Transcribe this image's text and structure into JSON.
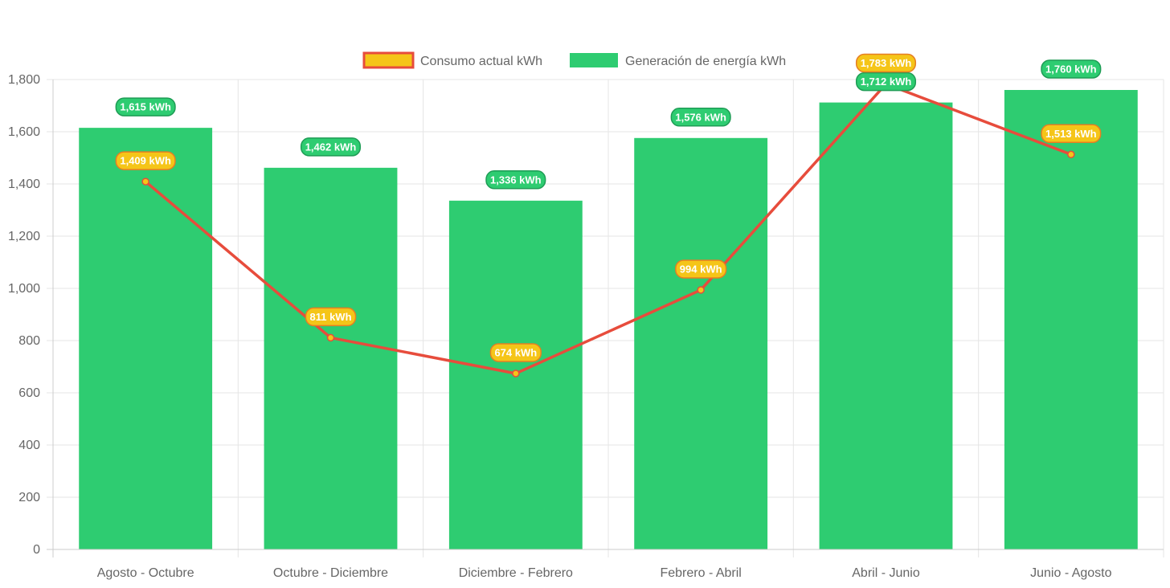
{
  "chart_data": {
    "type": "bar",
    "categories": [
      "Agosto - Octubre",
      "Octubre - Diciembre",
      "Diciembre - Febrero",
      "Febrero - Abril",
      "Abril - Junio",
      "Junio - Agosto"
    ],
    "series": [
      {
        "name": "Consumo actual kWh",
        "type": "line",
        "values": [
          1409,
          811,
          674,
          994,
          1783,
          1513
        ],
        "labels": [
          "1,409 kWh",
          "811 kWh",
          "674 kWh",
          "994 kWh",
          "1,783 kWh",
          "1,513 kWh"
        ],
        "color": "#e74c3c",
        "fill_color": "#f5c518"
      },
      {
        "name": "Generación de energía kWh",
        "type": "bar",
        "values": [
          1615,
          1462,
          1336,
          1576,
          1712,
          1760
        ],
        "labels": [
          "1,615 kWh",
          "1,462 kWh",
          "1,336 kWh",
          "1,576 kWh",
          "1,712 kWh",
          "1,760 kWh"
        ],
        "color": "#2ecc71"
      }
    ],
    "y_ticks": [
      "0",
      "200",
      "400",
      "600",
      "800",
      "1,000",
      "1,200",
      "1,400",
      "1,600",
      "1,800"
    ],
    "title": "",
    "xlabel": "",
    "ylabel": "",
    "ylim": [
      0,
      1800
    ],
    "grid": true,
    "legend_position": "top-center"
  }
}
